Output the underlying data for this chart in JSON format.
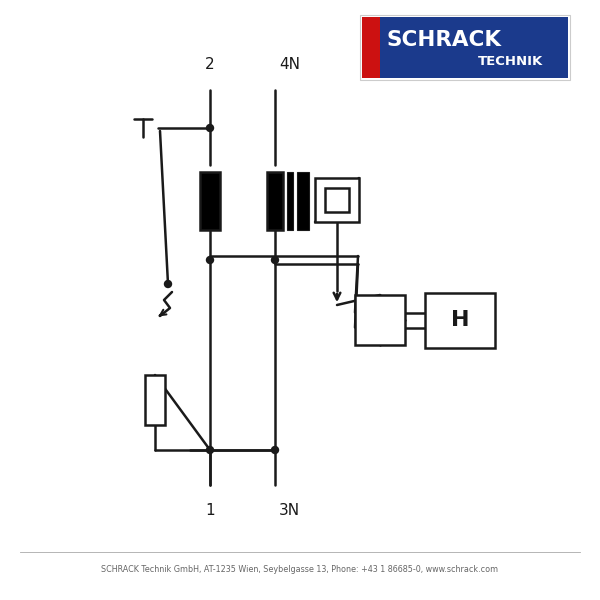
{
  "bg_color": "#ffffff",
  "line_color": "#1a1a1a",
  "logo_blue": "#1b3a8c",
  "logo_red": "#cc1111",
  "footer_text": "SCHRACK Technik GmbH, AT-1235 Wien, Seybelgasse 13, Phone: +43 1 86685-0, www.schrack.com",
  "label_2": "2",
  "label_4N": "4N",
  "label_1": "1",
  "label_3N": "3N",
  "label_H": "H"
}
